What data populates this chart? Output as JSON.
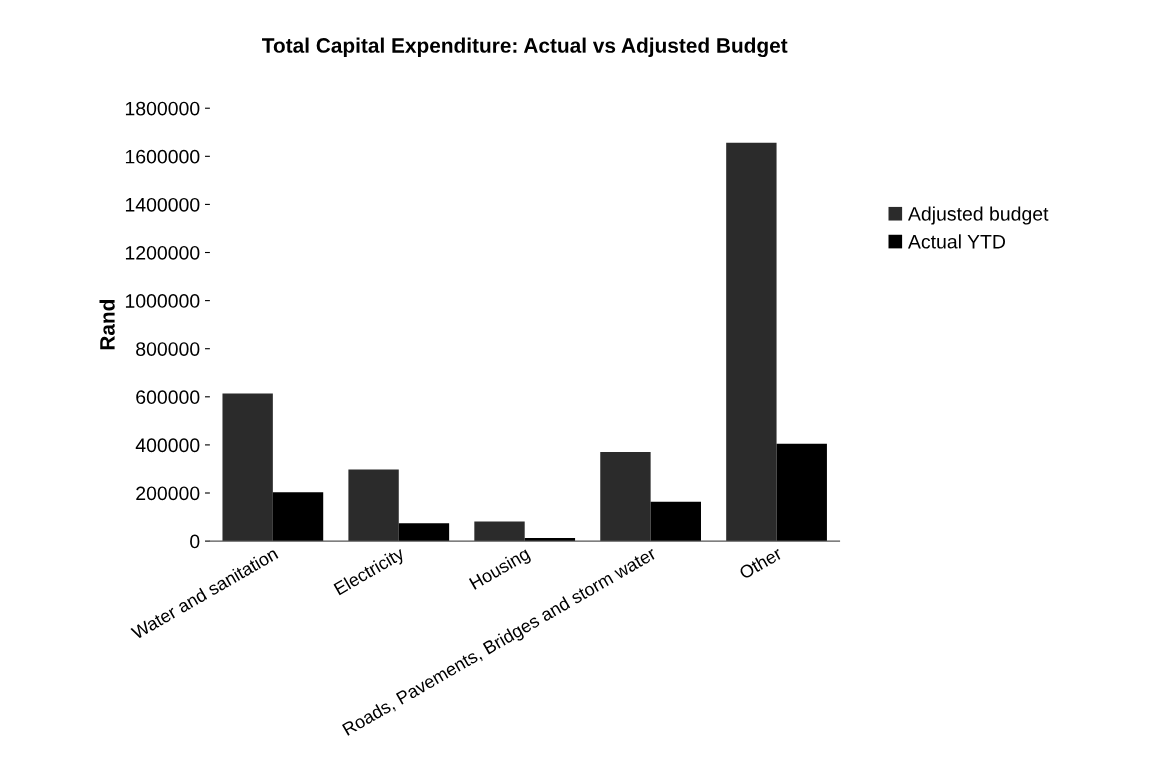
{
  "chart_data": {
    "type": "bar",
    "title": "Total Capital Expenditure: Actual vs Adjusted Budget",
    "ylabel": "Rand",
    "categories": [
      "Water and sanitation",
      "Electricity",
      "Housing",
      "Roads, Pavements, Bridges and storm water",
      "Other"
    ],
    "series": [
      {
        "name": "Adjusted budget",
        "color": "#2b2b2b",
        "values": [
          614000,
          298000,
          81000,
          370000,
          1656000
        ]
      },
      {
        "name": "Actual YTD",
        "color": "#000000",
        "values": [
          203000,
          74000,
          13000,
          164000,
          405000
        ]
      }
    ],
    "ylim": [
      0,
      1800000
    ],
    "yticks": [
      0,
      200000,
      400000,
      600000,
      800000,
      1000000,
      1200000,
      1400000,
      1600000,
      1800000
    ],
    "grid": false,
    "legend": "right"
  }
}
